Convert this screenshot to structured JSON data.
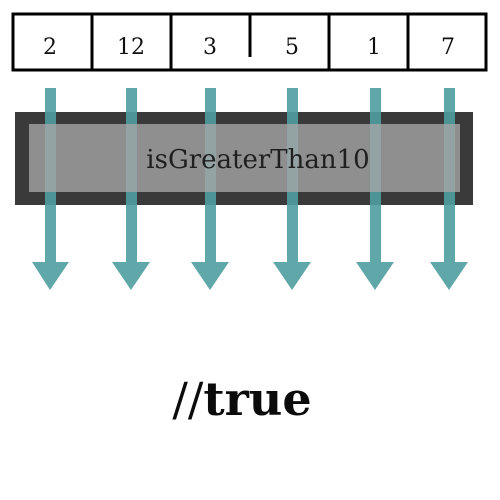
{
  "array": {
    "values": [
      "2",
      "12",
      "3",
      "5",
      "1",
      "7"
    ]
  },
  "function_box": {
    "label": "isGreaterThan10"
  },
  "result": {
    "prefix": "//",
    "value": "true"
  },
  "colors": {
    "arrow": "#4f9ea0",
    "box_outer": "#3a3a3a",
    "box_inner": "#9e9e9e",
    "array_border": "#000000"
  }
}
